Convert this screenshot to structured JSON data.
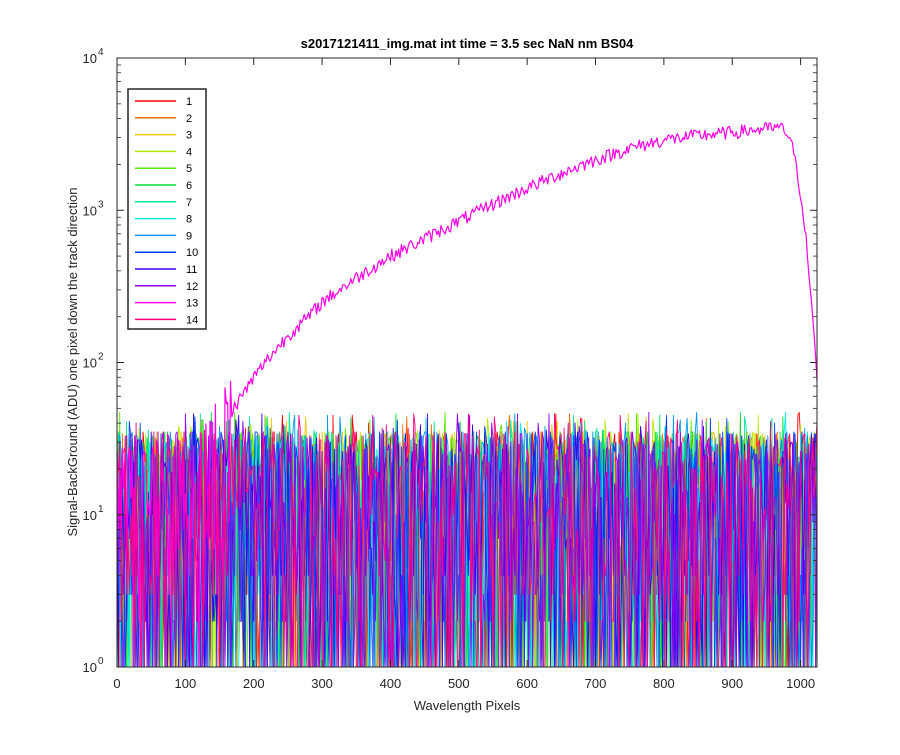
{
  "chart_data": {
    "type": "line",
    "title": "s2017121411_img.mat int time = 3.5 sec  NaN nm BS04",
    "xlabel": "Wavelength Pixels",
    "ylabel": "Signal-BackGround (ADU) one pixel down the track direction",
    "xlim": [
      0,
      1024
    ],
    "ylim": [
      1,
      10000
    ],
    "yscale": "log",
    "grid": false,
    "legend_position": "top-left",
    "x_ticks": [
      0,
      100,
      200,
      300,
      400,
      500,
      600,
      700,
      800,
      900,
      1000
    ],
    "y_ticks": [
      {
        "value": 1,
        "base": "10",
        "exp": "0"
      },
      {
        "value": 10,
        "base": "10",
        "exp": "1"
      },
      {
        "value": 100,
        "base": "10",
        "exp": "2"
      },
      {
        "value": 1000,
        "base": "10",
        "exp": "3"
      },
      {
        "value": 10000,
        "base": "10",
        "exp": "4"
      }
    ],
    "noise_level": {
      "min": 1,
      "max": 48,
      "typical_max": 35
    },
    "series": [
      {
        "name": "1",
        "color": "#ff0000"
      },
      {
        "name": "2",
        "color": "#ff6a00"
      },
      {
        "name": "3",
        "color": "#f5c800"
      },
      {
        "name": "4",
        "color": "#b5ea00"
      },
      {
        "name": "5",
        "color": "#5cea00"
      },
      {
        "name": "6",
        "color": "#00e03c"
      },
      {
        "name": "7",
        "color": "#00e89a"
      },
      {
        "name": "8",
        "color": "#00eaea"
      },
      {
        "name": "9",
        "color": "#0096f0"
      },
      {
        "name": "10",
        "color": "#0040ff"
      },
      {
        "name": "11",
        "color": "#3a00f0"
      },
      {
        "name": "12",
        "color": "#9600f0"
      },
      {
        "name": "13",
        "color": "#ff00e6",
        "points": [
          [
            0,
            14
          ],
          [
            60,
            14
          ],
          [
            120,
            16
          ],
          [
            140,
            22
          ],
          [
            150,
            35
          ],
          [
            160,
            42
          ],
          [
            170,
            50
          ],
          [
            180,
            58
          ],
          [
            200,
            80
          ],
          [
            220,
            105
          ],
          [
            250,
            150
          ],
          [
            280,
            200
          ],
          [
            300,
            250
          ],
          [
            350,
            360
          ],
          [
            400,
            500
          ],
          [
            450,
            650
          ],
          [
            500,
            850
          ],
          [
            550,
            1100
          ],
          [
            600,
            1400
          ],
          [
            650,
            1750
          ],
          [
            700,
            2150
          ],
          [
            750,
            2550
          ],
          [
            800,
            2900
          ],
          [
            850,
            3100
          ],
          [
            900,
            3250
          ],
          [
            940,
            3400
          ],
          [
            965,
            3500
          ],
          [
            975,
            3400
          ],
          [
            985,
            3000
          ],
          [
            995,
            1800
          ],
          [
            1005,
            900
          ],
          [
            1012,
            400
          ],
          [
            1018,
            180
          ],
          [
            1024,
            80
          ]
        ]
      },
      {
        "name": "14",
        "color": "#ff0080"
      }
    ]
  }
}
